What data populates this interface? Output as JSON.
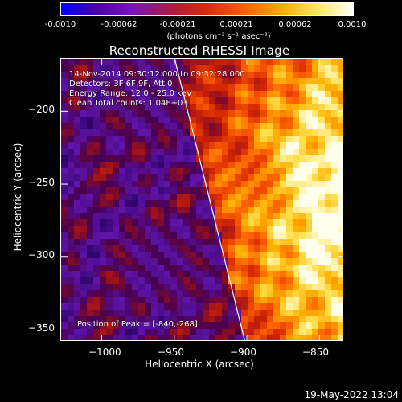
{
  "colorbar": {
    "tick_labels": [
      "-0.0010",
      "-0.00062",
      "-0.00021",
      "0.00021",
      "0.00062",
      "0.0010"
    ],
    "units_label": "(photons cm⁻² s⁻¹ asec⁻²)"
  },
  "plot": {
    "title": "Reconstructed RHESSI Image",
    "info_lines": [
      "14-Nov-2014 09:30:12.000 to 09:32:28.000",
      "Detectors: 3F 6F 9F, Att 0",
      "Energy Range: 12.0 - 25.0 keV",
      "Clean     Total counts: 1.04E+03"
    ],
    "peak_label": "Position of Peak = [-840,-268]",
    "x_axis": {
      "label": "Heliocentric X (arcsec)",
      "range": [
        -1028,
        -833
      ],
      "ticks": [
        -1000,
        -950,
        -900,
        -850
      ],
      "tick_labels": [
        "−1000",
        "−950",
        "−900",
        "−850"
      ]
    },
    "y_axis": {
      "label": "Heliocentric Y (arcsec)",
      "range": [
        -358,
        -164
      ],
      "ticks": [
        -200,
        -250,
        -300,
        -350
      ],
      "tick_labels": [
        "−200",
        "−250",
        "−300",
        "−350"
      ]
    },
    "colors": {
      "limb_line": "#ffffff",
      "frame": "#ffffff"
    }
  },
  "footer": {
    "timestamp": "19-May-2022 13:04"
  }
}
